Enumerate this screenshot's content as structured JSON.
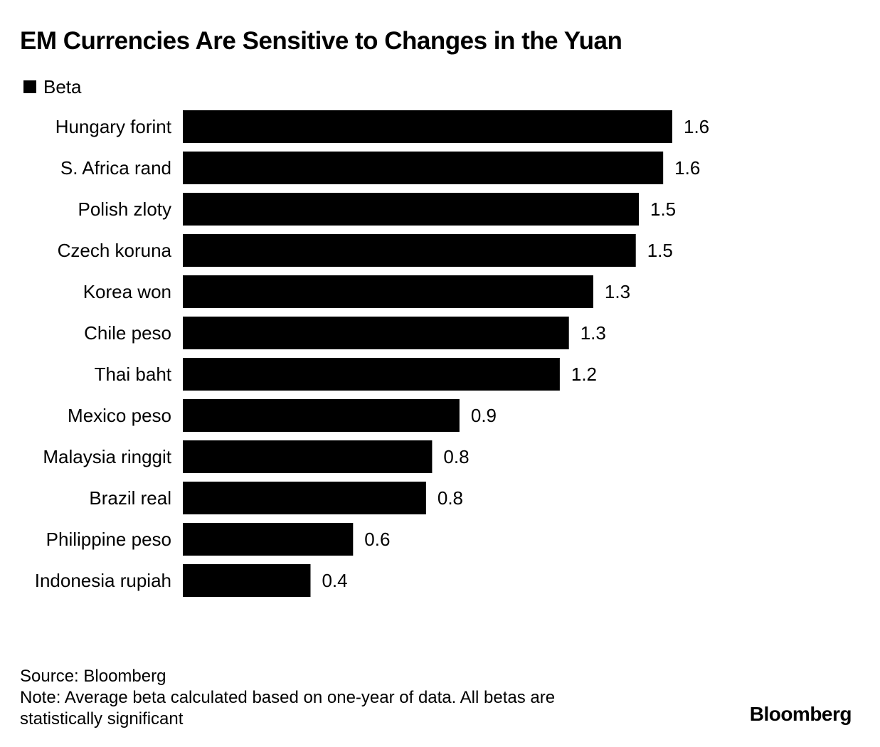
{
  "chart_data": {
    "type": "bar",
    "orientation": "horizontal",
    "title": "EM Currencies Are Sensitive to Changes in the Yuan",
    "legend": [
      {
        "label": "Beta",
        "color": "#000000"
      }
    ],
    "categories": [
      "Hungary forint",
      "S. Africa rand",
      "Polish zloty",
      "Czech koruna",
      "Korea won",
      "Chile peso",
      "Thai baht",
      "Mexico peso",
      "Malaysia ringgit",
      "Brazil real",
      "Philippine peso",
      "Indonesia rupiah"
    ],
    "values": [
      1.61,
      1.58,
      1.5,
      1.49,
      1.35,
      1.27,
      1.24,
      0.91,
      0.82,
      0.8,
      0.56,
      0.42
    ],
    "value_labels": [
      "1.6",
      "1.6",
      "1.5",
      "1.5",
      "1.3",
      "1.3",
      "1.2",
      "0.9",
      "0.8",
      "0.8",
      "0.6",
      "0.4"
    ],
    "xlim": [
      0,
      1.61
    ],
    "bar_color": "#000000",
    "xlabel": "",
    "ylabel": ""
  },
  "footer": {
    "source": "Source: Bloomberg",
    "note_line1": "Note: Average beta calculated based on one-year of data. All betas are",
    "note_line2": "statistically significant"
  },
  "brand": "Bloomberg"
}
